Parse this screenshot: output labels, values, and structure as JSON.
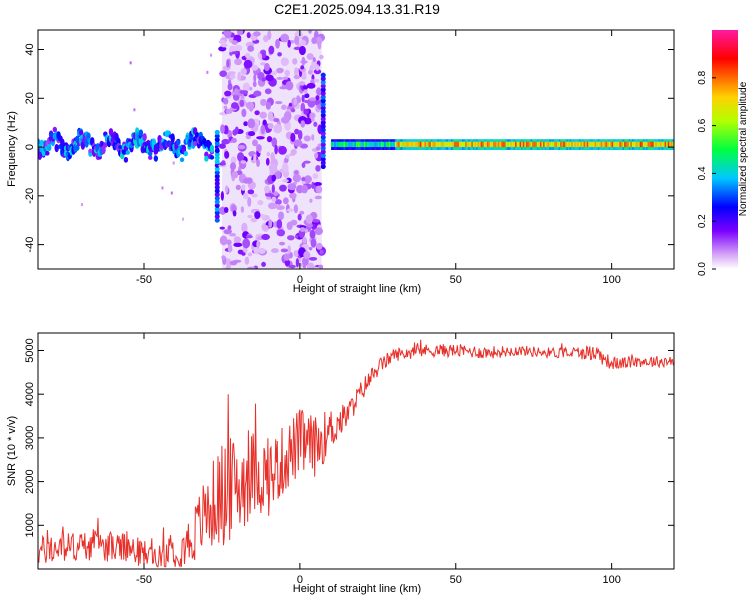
{
  "figure_title": "C2E1.2025.094.13.31.R19",
  "colors": {
    "snr_line": "#e8302a",
    "axis": "#000000",
    "background": "#ffffff"
  },
  "chart_data": [
    {
      "type": "heatmap",
      "xlabel": "Height of straight line (km)",
      "ylabel": "Frequency (Hz)",
      "xlim": [
        -84,
        120
      ],
      "ylim": [
        -50,
        48
      ],
      "x_ticks": [
        -50,
        0,
        50,
        100
      ],
      "y_ticks": [
        -40,
        -20,
        0,
        20,
        40
      ],
      "colorbar": {
        "label": "Normalized spectral amplitude",
        "range": [
          0,
          1
        ],
        "ticks": [
          "0.0",
          "0.2",
          "0.4",
          "0.6",
          "0.8"
        ],
        "colormap": "rainbow (violet → blue → cyan → green → yellow → orange → red → magenta)"
      },
      "regions": [
        {
          "x_range": [
            -84,
            -30
          ],
          "center_freq_hz": 1,
          "amplitude": "0.2-0.45",
          "note": "noisy band around 0 Hz"
        },
        {
          "x_range": [
            -25,
            7
          ],
          "center_freq_hz": null,
          "amplitude": "0.0-0.15",
          "note": "broadband scattered noise across all frequencies"
        },
        {
          "x_range": [
            10,
            120
          ],
          "center_freq_hz": 1,
          "amplitude": "0.7-0.85",
          "note": "narrow stable band near 0 Hz"
        }
      ]
    },
    {
      "type": "line",
      "xlabel": "Height of straight line (km)",
      "ylabel": "SNR (10 * v/v)",
      "xlim": [
        -84,
        120
      ],
      "ylim": [
        0,
        5400
      ],
      "x_ticks": [
        -50,
        0,
        50,
        100
      ],
      "y_ticks": [
        1000,
        2000,
        3000,
        4000,
        5000
      ],
      "series": [
        {
          "x": [
            -84,
            -75,
            -65,
            -55,
            -45,
            -35,
            -30,
            -25,
            -20,
            -15,
            -10,
            -5,
            0,
            5,
            10,
            15,
            20,
            25,
            30,
            40,
            50,
            60,
            70,
            80,
            90,
            95,
            100,
            110,
            120
          ],
          "y": [
            400,
            500,
            550,
            450,
            250,
            650,
            1300,
            1700,
            1900,
            2200,
            2100,
            2500,
            2900,
            2800,
            3200,
            3500,
            4100,
            4600,
            4900,
            5000,
            5000,
            4950,
            5000,
            4950,
            4950,
            4950,
            4700,
            4750,
            4750
          ],
          "noise_amplitude": [
            350,
            350,
            350,
            350,
            300,
            600,
            900,
            1200,
            1200,
            1000,
            900,
            800,
            800,
            700,
            500,
            300,
            250,
            200,
            150,
            150,
            150,
            150,
            120,
            120,
            150,
            200,
            150,
            130,
            130
          ]
        }
      ]
    }
  ]
}
